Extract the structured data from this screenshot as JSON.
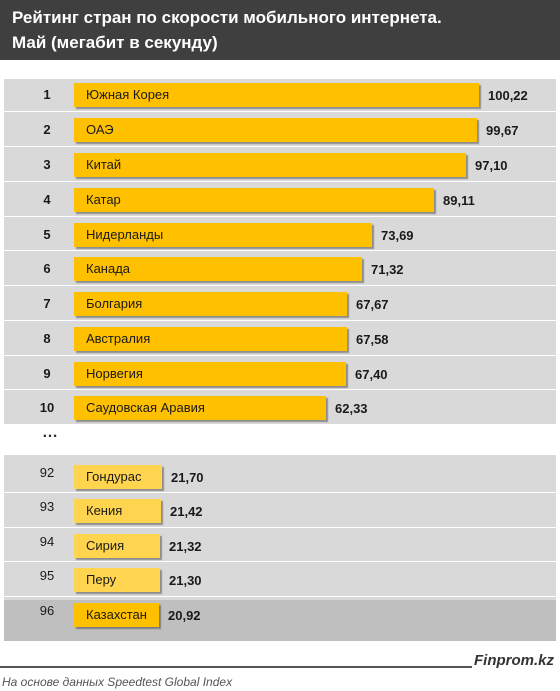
{
  "header": {
    "title_line1": "Рейтинг стран по скорости мобильного интернета.",
    "title_line2": "Май (мегабит в секунду)"
  },
  "ellipsis": "…",
  "chart_data": {
    "type": "bar",
    "orientation": "horizontal",
    "title": "Рейтинг стран по скорости мобильного интернета. Май (мегабит в секунду)",
    "xlim": [
      0,
      100.22
    ],
    "rows": [
      {
        "rank": "1",
        "country": "Южная Корея",
        "value": "100,22",
        "v": 100.22
      },
      {
        "rank": "2",
        "country": "ОАЭ",
        "value": "99,67",
        "v": 99.67
      },
      {
        "rank": "3",
        "country": "Китай",
        "value": "97,10",
        "v": 97.1
      },
      {
        "rank": "4",
        "country": "Катар",
        "value": "89,11",
        "v": 89.11
      },
      {
        "rank": "5",
        "country": "Нидерланды",
        "value": "73,69",
        "v": 73.69
      },
      {
        "rank": "6",
        "country": "Канада",
        "value": "71,32",
        "v": 71.32
      },
      {
        "rank": "7",
        "country": "Болгария",
        "value": "67,67",
        "v": 67.67
      },
      {
        "rank": "8",
        "country": "Австралия",
        "value": "67,58",
        "v": 67.58
      },
      {
        "rank": "9",
        "country": "Норвегия",
        "value": "67,40",
        "v": 67.4
      },
      {
        "rank": "10",
        "country": "Саудовская Аравия",
        "value": "62,33",
        "v": 62.33
      },
      {
        "rank": "92",
        "country": "Гондурас",
        "value": "21,70",
        "v": 21.7
      },
      {
        "rank": "93",
        "country": "Кения",
        "value": "21,42",
        "v": 21.42
      },
      {
        "rank": "94",
        "country": "Сирия",
        "value": "21,32",
        "v": 21.32
      },
      {
        "rank": "95",
        "country": "Перу",
        "value": "21,30",
        "v": 21.3
      },
      {
        "rank": "96",
        "country": "Казахстан",
        "value": "20,92",
        "v": 20.92,
        "highlight": true
      }
    ]
  },
  "footer": {
    "brand": "Finprom.kz",
    "source": "На основе данных Speedtest Global Index"
  },
  "colors": {
    "bar": "#ffc000",
    "bar_light": "#ffd54f",
    "header_bg": "#3f3f3f",
    "panel_bg": "#d9d9d9",
    "highlight_bg": "#bfbfbf"
  }
}
